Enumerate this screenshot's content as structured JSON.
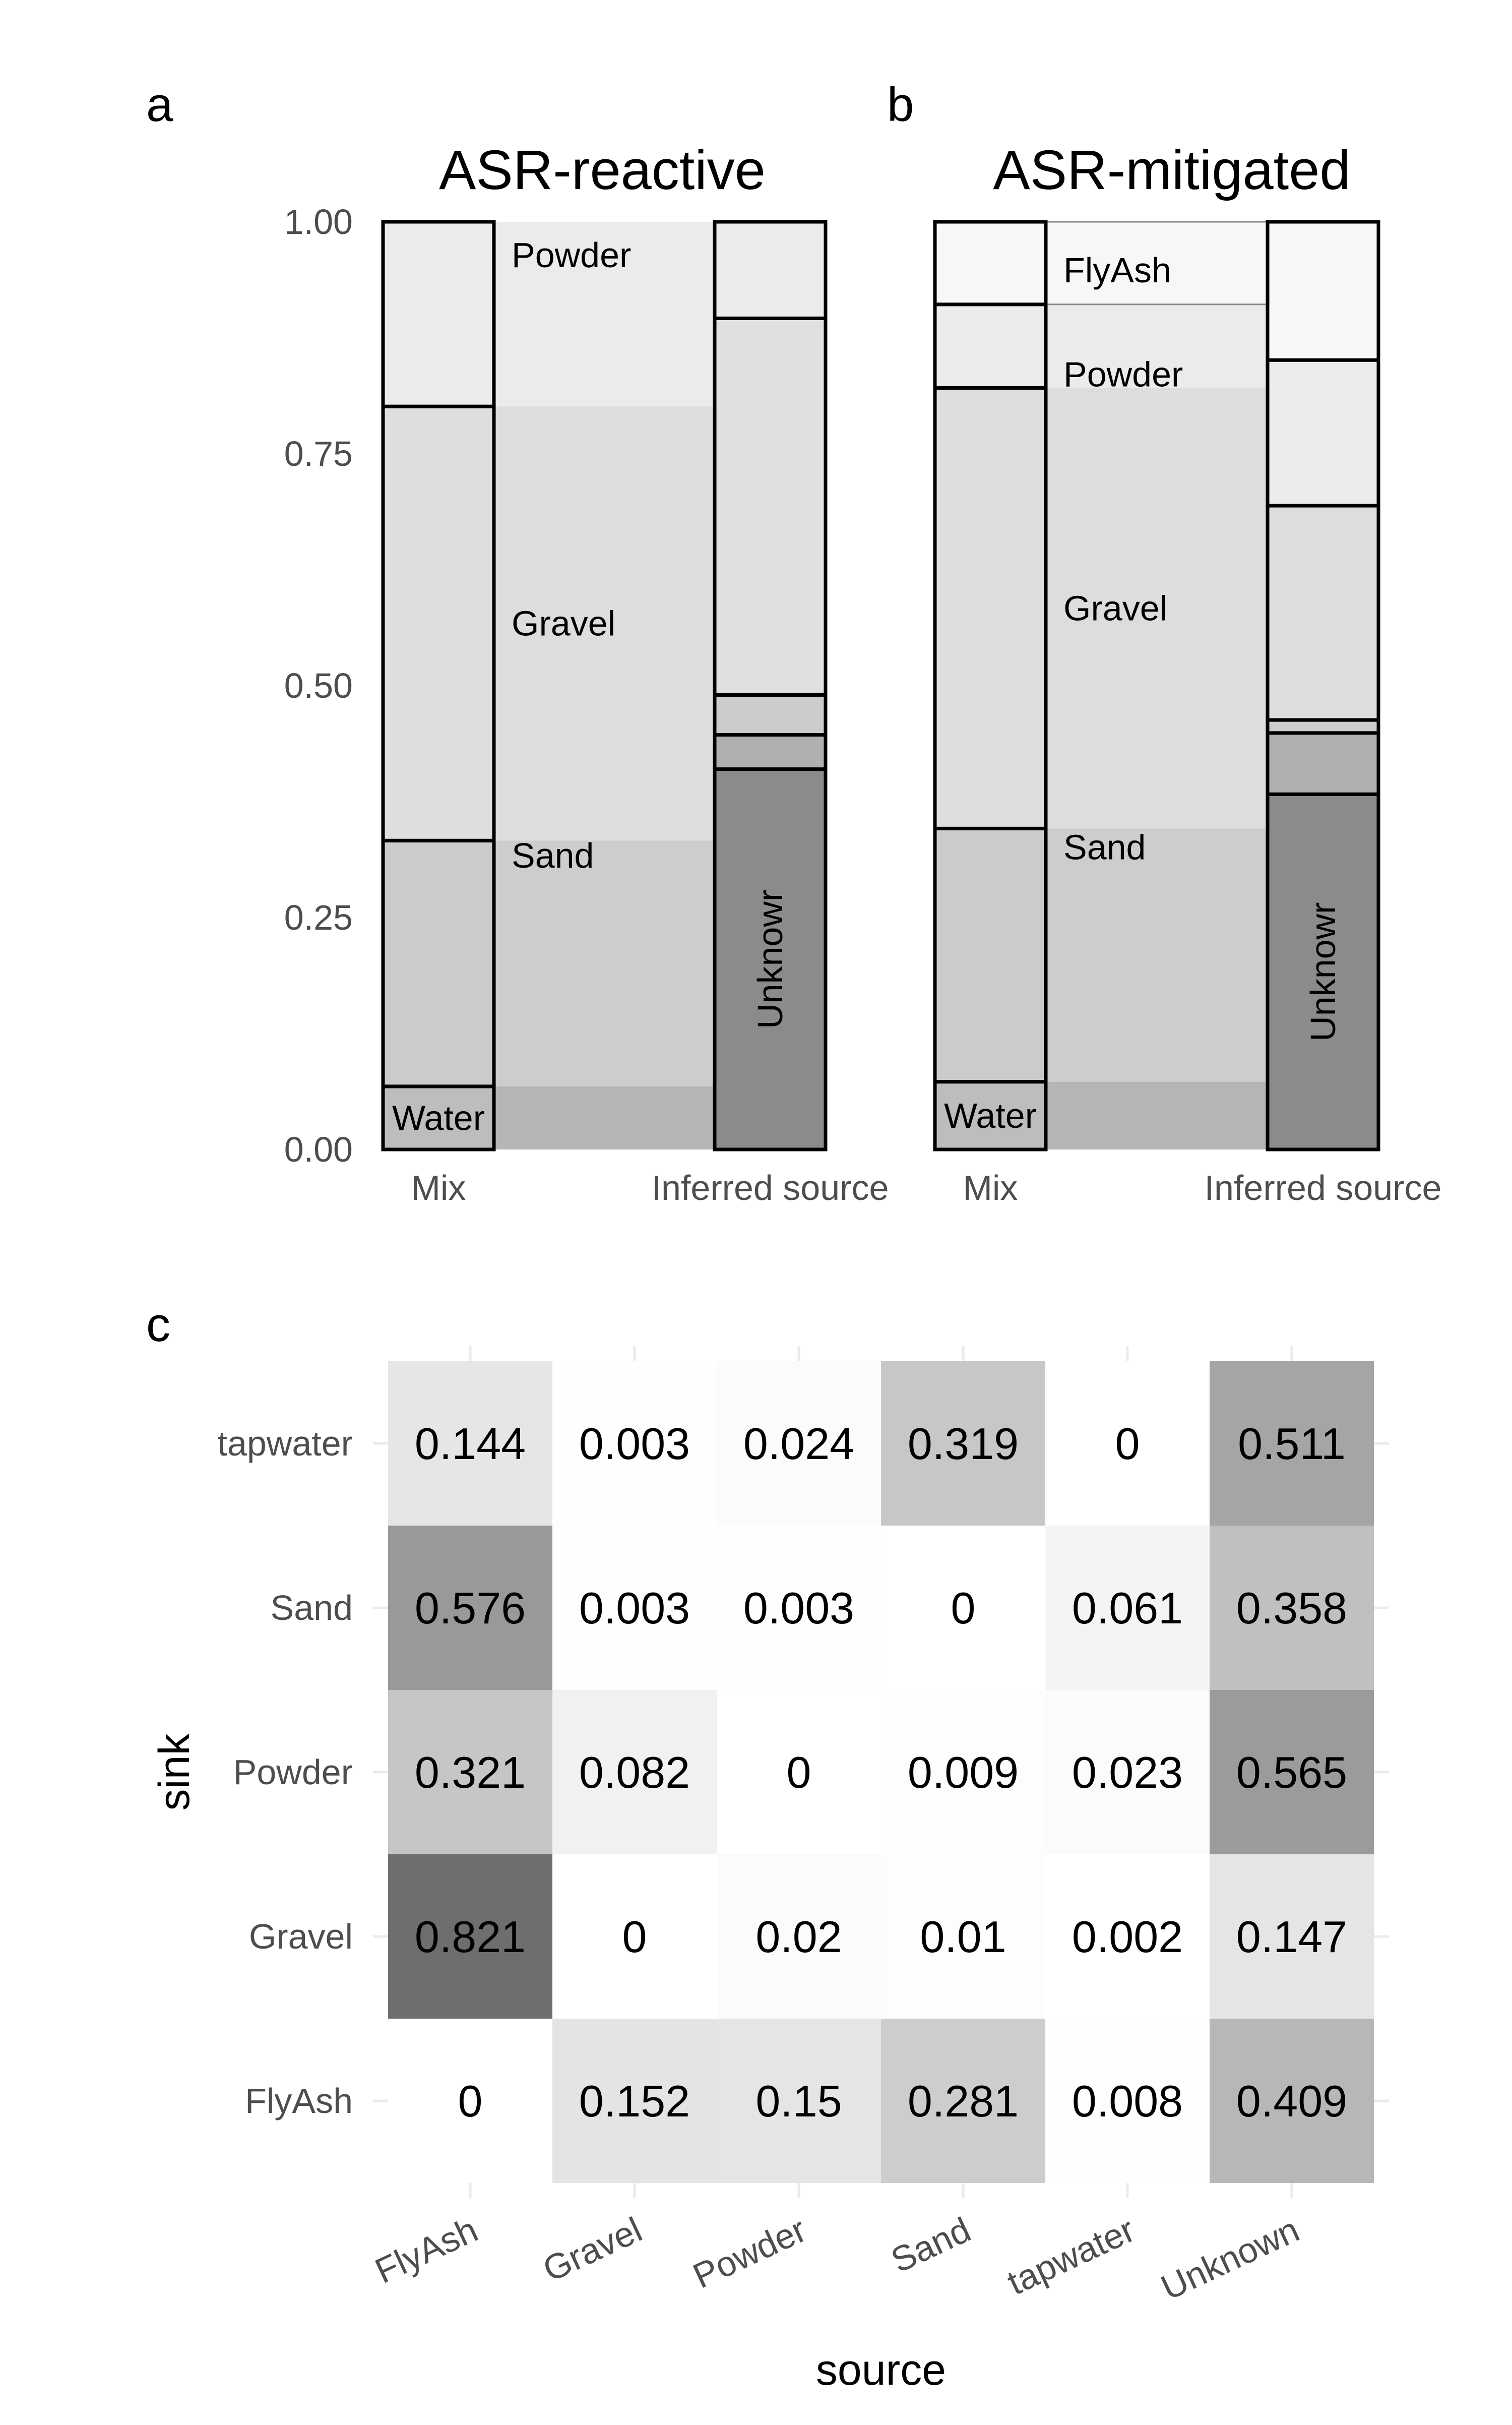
{
  "figure": {
    "letters": {
      "a": "a",
      "b": "b",
      "c": "c"
    }
  },
  "chart_data": [
    {
      "type": "alluvial",
      "panel_letter": "a",
      "title": "ASR-reactive",
      "x_axes": [
        "Mix",
        "Inferred source"
      ],
      "y_ticks": [
        "0.00",
        "0.25",
        "0.50",
        "0.75",
        "1.00"
      ],
      "ylim": [
        0,
        1
      ],
      "mix_strata": [
        {
          "name": "Water",
          "value": 0.068
        },
        {
          "name": "Sand",
          "value": 0.265
        },
        {
          "name": "Gravel",
          "value": 0.468
        },
        {
          "name": "Powder",
          "value": 0.199
        }
      ],
      "source_strata": [
        {
          "name": "Unknowr",
          "value": 0.41
        },
        {
          "name": "",
          "value": 0.037
        },
        {
          "name": "",
          "value": 0.043
        },
        {
          "name": "",
          "value": 0.406
        },
        {
          "name": "",
          "value": 0.104
        }
      ],
      "flow_colors": [
        "#b5b5b5",
        "#cdcdcd",
        "#dddddd",
        "#ebebeb"
      ],
      "stratum_colors": {
        "Water": "#bdbdbd",
        "Sand": "#cbcbcb",
        "Gravel": "#dedede",
        "Powder": "#ececec",
        "Unknowr": "#8b8b8b",
        "src2": "#b0b0b0",
        "src3": "#cccccc",
        "src4": "#e0e0e0",
        "src5": "#ececec"
      }
    },
    {
      "type": "alluvial",
      "panel_letter": "b",
      "title": "ASR-mitigated",
      "x_axes": [
        "Mix",
        "Inferred source"
      ],
      "y_ticks": [
        "0.00",
        "0.25",
        "0.50",
        "0.75",
        "1.00"
      ],
      "ylim": [
        0,
        1
      ],
      "mix_strata": [
        {
          "name": "Water",
          "value": 0.073
        },
        {
          "name": "Sand",
          "value": 0.273
        },
        {
          "name": "Gravel",
          "value": 0.475
        },
        {
          "name": "Powder",
          "value": 0.09
        },
        {
          "name": "FlyAsh",
          "value": 0.089
        }
      ],
      "source_strata": [
        {
          "name": "Unknowr",
          "value": 0.383
        },
        {
          "name": "",
          "value": 0.066
        },
        {
          "name": "",
          "value": 0.014
        },
        {
          "name": "",
          "value": 0.231
        },
        {
          "name": "",
          "value": 0.157
        },
        {
          "name": "",
          "value": 0.149
        }
      ],
      "flow_colors": [
        "#b5b5b5",
        "#cdcdcd",
        "#dddddd",
        "#ebebeb",
        "#f7f7f7"
      ],
      "stratum_colors": {
        "Water": "#bdbdbd",
        "Sand": "#cbcbcb",
        "Gravel": "#dedede",
        "Powder": "#ececec",
        "FlyAsh": "#f8f8f8",
        "Unknowr": "#8b8b8b",
        "src2": "#b0b0b0",
        "src3": "#cccccc",
        "src4": "#dedede",
        "src5": "#ececec",
        "src6": "#f8f8f8"
      }
    },
    {
      "type": "heatmap",
      "panel_letter": "c",
      "xlabel": "source",
      "ylabel": "sink",
      "x_categories": [
        "FlyAsh",
        "Gravel",
        "Powder",
        "Sand",
        "tapwater",
        "Unknown"
      ],
      "y_categories": [
        "tapwater",
        "Sand",
        "Powder",
        "Gravel",
        "FlyAsh"
      ],
      "values": [
        [
          0.144,
          0.003,
          0.024,
          0.319,
          0,
          0.511
        ],
        [
          0.576,
          0.003,
          0.003,
          0,
          0.061,
          0.358
        ],
        [
          0.321,
          0.082,
          0,
          0.009,
          0.023,
          0.565
        ],
        [
          0.821,
          0,
          0.02,
          0.01,
          0.002,
          0.147
        ],
        [
          0,
          0.152,
          0.15,
          0.281,
          0.008,
          0.409
        ]
      ],
      "labels": [
        [
          "0.144",
          "0.003",
          "0.024",
          "0.319",
          "0",
          "0.511"
        ],
        [
          "0.576",
          "0.003",
          "0.003",
          "0",
          "0.061",
          "0.358"
        ],
        [
          "0.321",
          "0.082",
          "0",
          "0.009",
          "0.023",
          "0.565"
        ],
        [
          "0.821",
          "0",
          "0.02",
          "0.01",
          "0.002",
          "0.147"
        ],
        [
          "0",
          "0.152",
          "0.15",
          "0.281",
          "0.008",
          "0.409"
        ]
      ],
      "color_low": "#ffffff",
      "color_high": "#6e6e6e"
    }
  ]
}
